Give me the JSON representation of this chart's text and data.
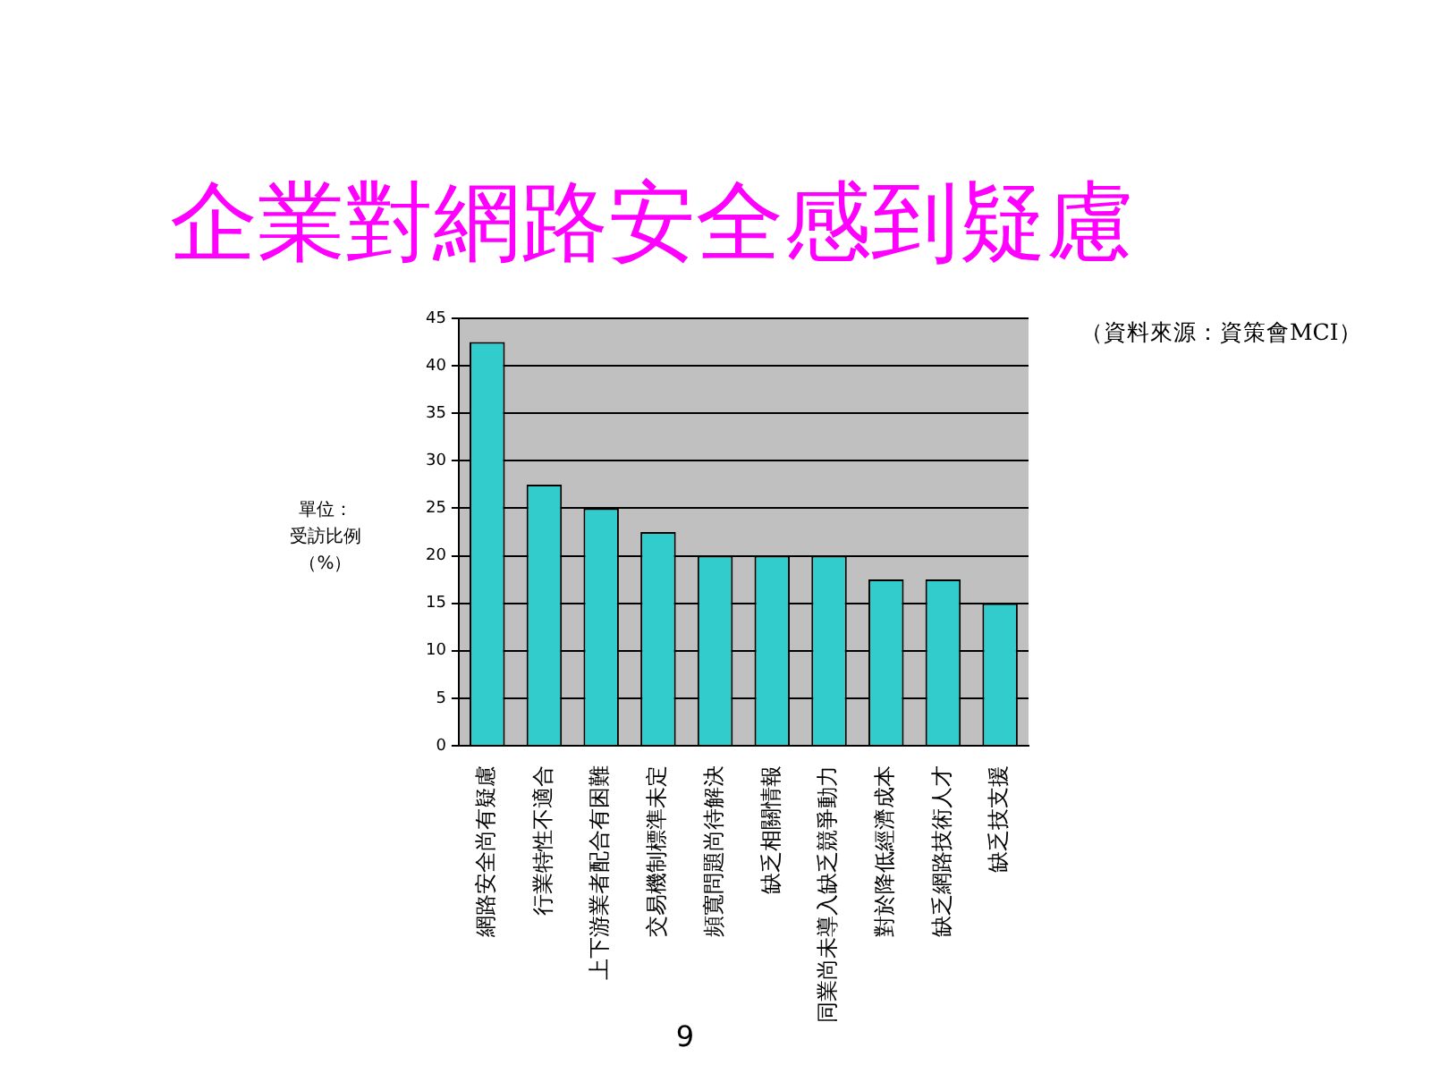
{
  "chart_data": {
    "type": "bar",
    "title": "企業對網路安全感到疑慮",
    "ylabel": "單位：受訪比例（%）",
    "categories": [
      "網路安全尚有疑慮",
      "行業特性不適合",
      "上下游業者配合有困難",
      "交易機制標準未定",
      "頻寬問題尚待解決",
      "缺乏相關情報",
      "同業尚未導入缺乏競爭動力",
      "對於降低經濟成本",
      "缺乏網路技術人才",
      "缺乏技支援"
    ],
    "values": [
      42.5,
      27.5,
      25,
      22.5,
      20,
      20,
      20,
      17.5,
      17.5,
      15
    ],
    "color": "#33cccc",
    "ylim": [
      0,
      45
    ],
    "yticks": [
      0,
      5,
      10,
      15,
      20,
      25,
      30,
      35,
      40,
      45
    ],
    "grid": "y",
    "annotations": [
      "（資料來源：資策會MCI）",
      "9"
    ]
  }
}
